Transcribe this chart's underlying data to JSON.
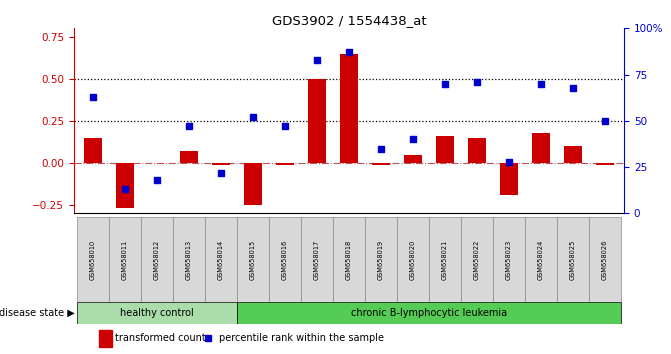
{
  "title": "GDS3902 / 1554438_at",
  "samples": [
    "GSM658010",
    "GSM658011",
    "GSM658012",
    "GSM658013",
    "GSM658014",
    "GSM658015",
    "GSM658016",
    "GSM658017",
    "GSM658018",
    "GSM658019",
    "GSM658020",
    "GSM658021",
    "GSM658022",
    "GSM658023",
    "GSM658024",
    "GSM658025",
    "GSM658026"
  ],
  "transformed_count": [
    0.15,
    -0.27,
    0.0,
    0.07,
    -0.01,
    -0.25,
    -0.01,
    0.5,
    0.65,
    -0.01,
    0.05,
    0.16,
    0.15,
    -0.19,
    0.18,
    0.1,
    -0.01
  ],
  "percentile_rank": [
    63,
    13,
    18,
    47,
    22,
    52,
    47,
    83,
    87,
    35,
    40,
    70,
    71,
    28,
    70,
    68,
    50
  ],
  "bar_color": "#cc0000",
  "dot_color": "#0000cc",
  "healthy_control_count": 5,
  "healthy_color": "#aaddaa",
  "leukemia_color": "#55cc55",
  "group_label_healthy": "healthy control",
  "group_label_leukemia": "chronic B-lymphocytic leukemia",
  "disease_state_label": "disease state",
  "legend_bar": "transformed count",
  "legend_dot": "percentile rank within the sample",
  "ylim_left": [
    -0.3,
    0.8
  ],
  "ylim_right": [
    0,
    100
  ],
  "yticks_left": [
    -0.25,
    0.0,
    0.25,
    0.5,
    0.75
  ],
  "yticks_right": [
    0,
    25,
    50,
    75,
    100
  ],
  "hlines": [
    0.25,
    0.5
  ],
  "background_color": "#ffffff",
  "left_axis_color": "#cc0000",
  "right_axis_color": "#0000cc"
}
